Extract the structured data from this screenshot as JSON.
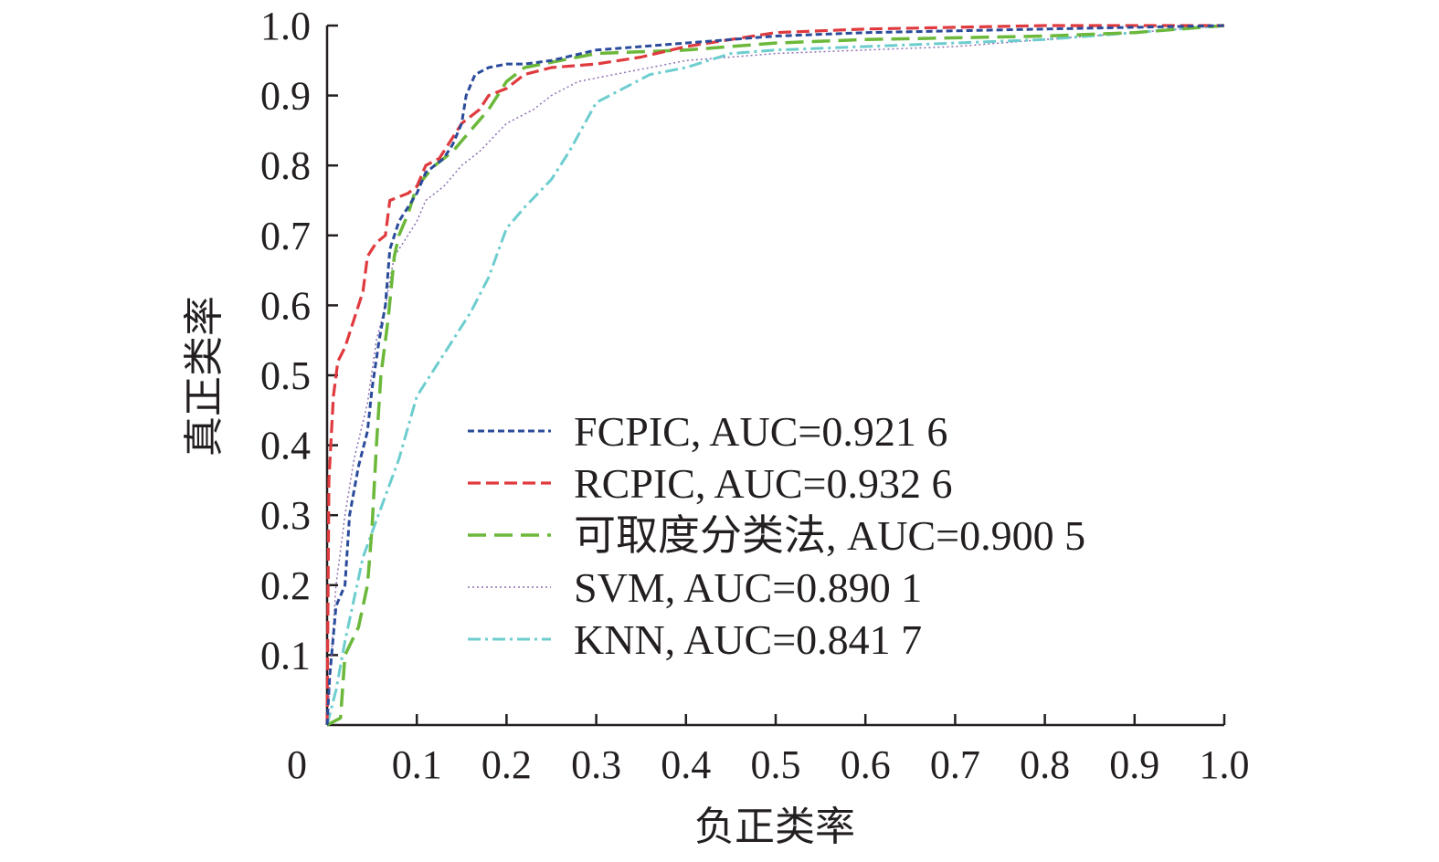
{
  "chart_data": {
    "type": "line",
    "title": "",
    "xlabel": "负正类率",
    "ylabel": "真正类率",
    "xlim": [
      0,
      1
    ],
    "ylim": [
      0,
      1
    ],
    "x_ticks": [
      "0",
      "0.1",
      "0.2",
      "0.3",
      "0.4",
      "0.5",
      "0.6",
      "0.7",
      "0.8",
      "0.9",
      "1.0"
    ],
    "y_ticks": [
      "0.1",
      "0.2",
      "0.3",
      "0.4",
      "0.5",
      "0.6",
      "0.7",
      "0.8",
      "0.9",
      "1.0"
    ],
    "grid": false,
    "legend_position": "bottom-right",
    "series": [
      {
        "name": "FCPIC, AUC=0.921 6",
        "color": "#2b4c9b",
        "dash": "short-dash",
        "points": [
          [
            0,
            0
          ],
          [
            0.003,
            0.07
          ],
          [
            0.01,
            0.17
          ],
          [
            0.02,
            0.2
          ],
          [
            0.025,
            0.3
          ],
          [
            0.035,
            0.37
          ],
          [
            0.045,
            0.42
          ],
          [
            0.05,
            0.48
          ],
          [
            0.058,
            0.55
          ],
          [
            0.065,
            0.6
          ],
          [
            0.07,
            0.68
          ],
          [
            0.08,
            0.72
          ],
          [
            0.09,
            0.74
          ],
          [
            0.1,
            0.76
          ],
          [
            0.11,
            0.79
          ],
          [
            0.12,
            0.8
          ],
          [
            0.13,
            0.81
          ],
          [
            0.14,
            0.83
          ],
          [
            0.15,
            0.86
          ],
          [
            0.155,
            0.9
          ],
          [
            0.165,
            0.93
          ],
          [
            0.18,
            0.94
          ],
          [
            0.2,
            0.945
          ],
          [
            0.22,
            0.945
          ],
          [
            0.25,
            0.95
          ],
          [
            0.3,
            0.965
          ],
          [
            0.35,
            0.97
          ],
          [
            0.4,
            0.975
          ],
          [
            0.45,
            0.98
          ],
          [
            0.5,
            0.985
          ],
          [
            0.6,
            0.99
          ],
          [
            0.8,
            0.995
          ],
          [
            1,
            1
          ]
        ]
      },
      {
        "name": "RCPIC, AUC=0.932 6",
        "color": "#e03a3e",
        "dash": "dash",
        "points": [
          [
            0,
            0
          ],
          [
            0.002,
            0.35
          ],
          [
            0.007,
            0.47
          ],
          [
            0.012,
            0.52
          ],
          [
            0.02,
            0.54
          ],
          [
            0.03,
            0.58
          ],
          [
            0.04,
            0.62
          ],
          [
            0.045,
            0.67
          ],
          [
            0.055,
            0.69
          ],
          [
            0.065,
            0.7
          ],
          [
            0.07,
            0.75
          ],
          [
            0.09,
            0.76
          ],
          [
            0.1,
            0.77
          ],
          [
            0.11,
            0.8
          ],
          [
            0.125,
            0.81
          ],
          [
            0.14,
            0.84
          ],
          [
            0.15,
            0.86
          ],
          [
            0.17,
            0.88
          ],
          [
            0.18,
            0.9
          ],
          [
            0.2,
            0.91
          ],
          [
            0.22,
            0.93
          ],
          [
            0.25,
            0.94
          ],
          [
            0.3,
            0.945
          ],
          [
            0.35,
            0.955
          ],
          [
            0.4,
            0.97
          ],
          [
            0.45,
            0.98
          ],
          [
            0.5,
            0.99
          ],
          [
            0.6,
            0.995
          ],
          [
            0.8,
            1
          ],
          [
            1,
            1
          ]
        ]
      },
      {
        "name": "可取度分类法, AUC=0.900 5",
        "color": "#6bb83a",
        "dash": "long-dash",
        "points": [
          [
            0,
            0
          ],
          [
            0.015,
            0.01
          ],
          [
            0.02,
            0.1
          ],
          [
            0.035,
            0.14
          ],
          [
            0.045,
            0.2
          ],
          [
            0.05,
            0.28
          ],
          [
            0.055,
            0.4
          ],
          [
            0.06,
            0.5
          ],
          [
            0.068,
            0.58
          ],
          [
            0.075,
            0.67
          ],
          [
            0.08,
            0.7
          ],
          [
            0.09,
            0.73
          ],
          [
            0.1,
            0.77
          ],
          [
            0.12,
            0.8
          ],
          [
            0.14,
            0.82
          ],
          [
            0.16,
            0.85
          ],
          [
            0.18,
            0.88
          ],
          [
            0.2,
            0.92
          ],
          [
            0.22,
            0.94
          ],
          [
            0.26,
            0.95
          ],
          [
            0.3,
            0.96
          ],
          [
            0.4,
            0.965
          ],
          [
            0.5,
            0.975
          ],
          [
            0.6,
            0.98
          ],
          [
            0.8,
            0.985
          ],
          [
            0.9,
            0.99
          ],
          [
            1,
            1
          ]
        ]
      },
      {
        "name": "SVM, AUC=0.890 1",
        "color": "#8e6fb2",
        "dash": "dot",
        "points": [
          [
            0,
            0
          ],
          [
            0.005,
            0.1
          ],
          [
            0.01,
            0.2
          ],
          [
            0.02,
            0.3
          ],
          [
            0.03,
            0.38
          ],
          [
            0.045,
            0.46
          ],
          [
            0.055,
            0.55
          ],
          [
            0.065,
            0.6
          ],
          [
            0.075,
            0.67
          ],
          [
            0.085,
            0.69
          ],
          [
            0.1,
            0.72
          ],
          [
            0.11,
            0.75
          ],
          [
            0.13,
            0.77
          ],
          [
            0.15,
            0.8
          ],
          [
            0.17,
            0.82
          ],
          [
            0.2,
            0.86
          ],
          [
            0.23,
            0.88
          ],
          [
            0.25,
            0.9
          ],
          [
            0.28,
            0.92
          ],
          [
            0.32,
            0.93
          ],
          [
            0.36,
            0.94
          ],
          [
            0.4,
            0.95
          ],
          [
            0.45,
            0.955
          ],
          [
            0.5,
            0.96
          ],
          [
            0.6,
            0.965
          ],
          [
            0.7,
            0.97
          ],
          [
            0.8,
            0.98
          ],
          [
            0.9,
            0.99
          ],
          [
            1,
            1
          ]
        ]
      },
      {
        "name": "KNN, AUC=0.841 7",
        "color": "#6dcdce",
        "dash": "dash-dot",
        "points": [
          [
            0,
            0
          ],
          [
            0.01,
            0.05
          ],
          [
            0.02,
            0.12
          ],
          [
            0.03,
            0.18
          ],
          [
            0.04,
            0.24
          ],
          [
            0.06,
            0.31
          ],
          [
            0.08,
            0.38
          ],
          [
            0.1,
            0.47
          ],
          [
            0.13,
            0.53
          ],
          [
            0.16,
            0.59
          ],
          [
            0.18,
            0.64
          ],
          [
            0.2,
            0.71
          ],
          [
            0.22,
            0.74
          ],
          [
            0.25,
            0.78
          ],
          [
            0.27,
            0.82
          ],
          [
            0.3,
            0.89
          ],
          [
            0.33,
            0.91
          ],
          [
            0.36,
            0.93
          ],
          [
            0.4,
            0.94
          ],
          [
            0.45,
            0.96
          ],
          [
            0.5,
            0.965
          ],
          [
            0.6,
            0.97
          ],
          [
            0.7,
            0.975
          ],
          [
            0.8,
            0.98
          ],
          [
            0.9,
            0.99
          ],
          [
            1,
            1
          ]
        ]
      }
    ]
  }
}
